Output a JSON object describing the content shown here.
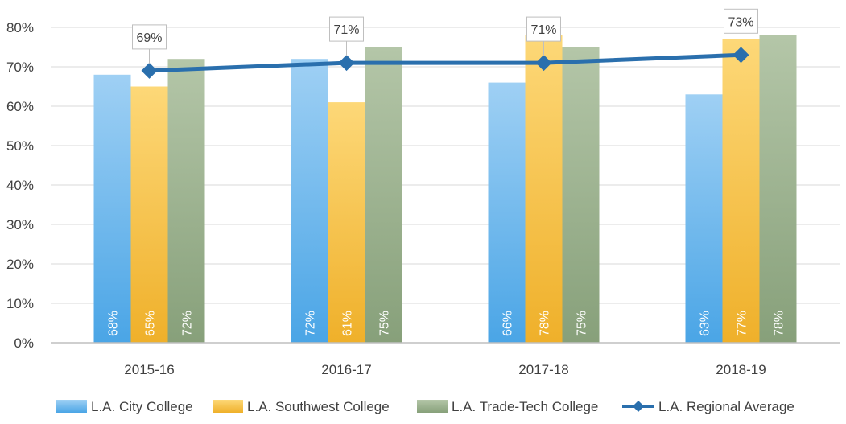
{
  "colors": {
    "city": "#8ec4ec",
    "southwest": "#f7c95a",
    "tradetech": "#a3b896",
    "average": "#2a6fad",
    "grid": "#d9d9d9",
    "axis": "#bfbfbf"
  },
  "chart_data": {
    "type": "bar",
    "title": "",
    "xlabel": "",
    "ylabel": "",
    "ylim": [
      0,
      80
    ],
    "yticks": [
      "0%",
      "10%",
      "20%",
      "30%",
      "40%",
      "50%",
      "60%",
      "70%",
      "80%"
    ],
    "grid": true,
    "legend_position": "bottom",
    "categories": [
      "2015-16",
      "2016-17",
      "2017-18",
      "2018-19"
    ],
    "series": [
      {
        "name": "L.A. City College",
        "kind": "bar",
        "values": [
          68,
          72,
          66,
          63
        ],
        "labels": [
          "68%",
          "72%",
          "66%",
          "63%"
        ]
      },
      {
        "name": "L.A. Southwest College",
        "kind": "bar",
        "values": [
          65,
          61,
          78,
          77
        ],
        "labels": [
          "65%",
          "61%",
          "78%",
          "77%"
        ]
      },
      {
        "name": "L.A. Trade-Tech College",
        "kind": "bar",
        "values": [
          72,
          75,
          75,
          78
        ],
        "labels": [
          "72%",
          "75%",
          "75%",
          "78%"
        ]
      },
      {
        "name": "L.A. Regional Average",
        "kind": "line",
        "values": [
          69,
          71,
          71,
          73
        ],
        "labels": [
          "69%",
          "71%",
          "71%",
          "73%"
        ]
      }
    ]
  }
}
